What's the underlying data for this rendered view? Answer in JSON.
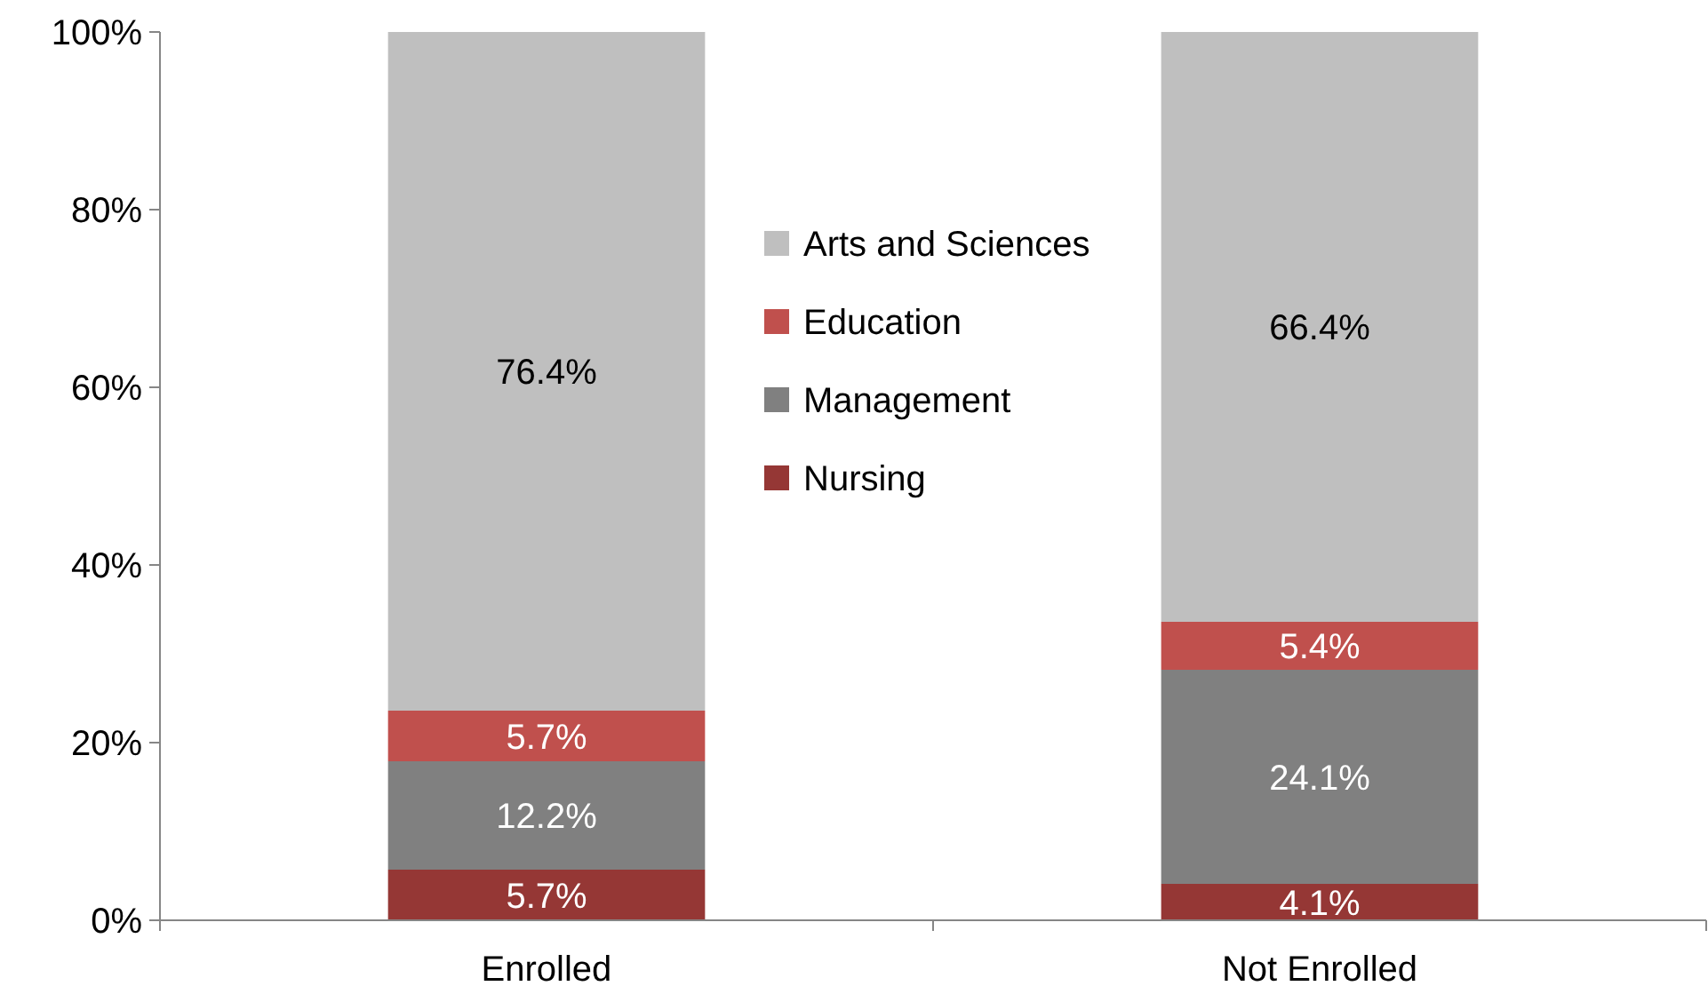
{
  "chart_data": {
    "type": "bar",
    "stacked": true,
    "categories": [
      "Enrolled",
      "Not Enrolled"
    ],
    "series": [
      {
        "name": "Nursing",
        "color": "#953735",
        "values": [
          5.7,
          4.1
        ],
        "value_labels": [
          "5.7%",
          "4.1%"
        ]
      },
      {
        "name": "Management",
        "color": "#808080",
        "values": [
          12.2,
          24.1
        ],
        "value_labels": [
          "12.2%",
          "24.1%"
        ]
      },
      {
        "name": "Education",
        "color": "#c0504d",
        "values": [
          5.7,
          5.4
        ],
        "value_labels": [
          "5.7%",
          "5.4%"
        ]
      },
      {
        "name": "Arts and Sciences",
        "color": "#bfbfbf",
        "values": [
          76.4,
          66.4
        ],
        "value_labels": [
          "76.4%",
          "66.4%"
        ]
      }
    ],
    "ylim": [
      0,
      100
    ],
    "yticks": [
      {
        "value": 0,
        "label": "0%"
      },
      {
        "value": 20,
        "label": "20%"
      },
      {
        "value": 40,
        "label": "40%"
      },
      {
        "value": 60,
        "label": "60%"
      },
      {
        "value": 80,
        "label": "80%"
      },
      {
        "value": 100,
        "label": "100%"
      }
    ],
    "grid": false,
    "legend": "top"
  }
}
